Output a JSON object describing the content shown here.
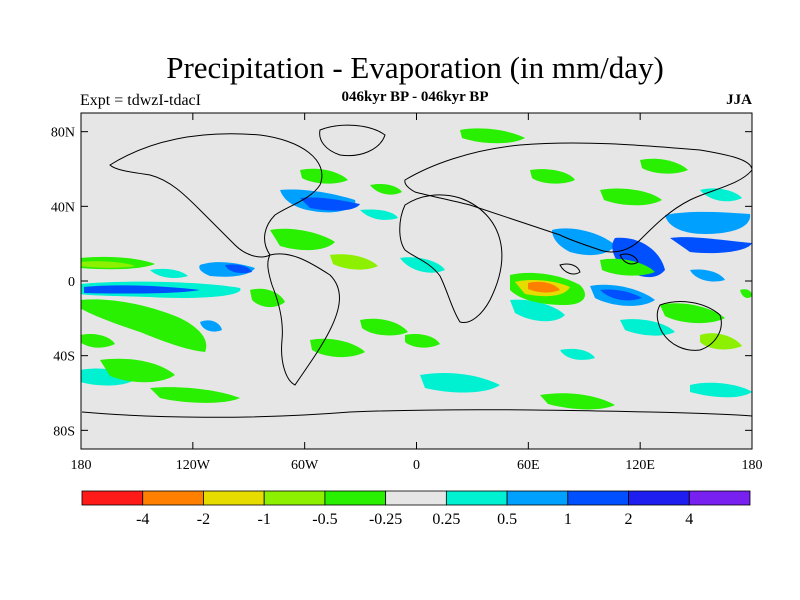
{
  "title": "Precipitation - Evaporation (in mm/day)",
  "subtitle": "046kyr BP - 046kyr BP",
  "experiment_label": "Expt = tdwzI-tdacI",
  "season": "JJA",
  "axes": {
    "lat_ticks": [
      {
        "value": 80,
        "label": "80N"
      },
      {
        "value": 40,
        "label": "40N"
      },
      {
        "value": 0,
        "label": "0"
      },
      {
        "value": -40,
        "label": "40S"
      },
      {
        "value": -80,
        "label": "80S"
      }
    ],
    "lon_ticks": [
      {
        "value": -180,
        "label": "180"
      },
      {
        "value": -120,
        "label": "120W"
      },
      {
        "value": -60,
        "label": "60W"
      },
      {
        "value": 0,
        "label": "0"
      },
      {
        "value": 60,
        "label": "60E"
      },
      {
        "value": 120,
        "label": "120E"
      },
      {
        "value": 180,
        "label": "180"
      }
    ],
    "lon_range": [
      -180,
      180
    ],
    "lat_range": [
      -90,
      90
    ]
  },
  "colorbar": {
    "colors": [
      "#ff1a1a",
      "#ff8000",
      "#e6dc00",
      "#8cf000",
      "#28f000",
      "#e6e6e6",
      "#00f0d2",
      "#00a0ff",
      "#0050ff",
      "#1e1ef0",
      "#7820f0"
    ],
    "labels": [
      "-4",
      "-2",
      "-1",
      "-0.5",
      "-0.25",
      "0.25",
      "0.5",
      "1",
      "2",
      "4"
    ]
  },
  "colors": {
    "background": "#e6e6e6",
    "coastline": "#000000"
  }
}
